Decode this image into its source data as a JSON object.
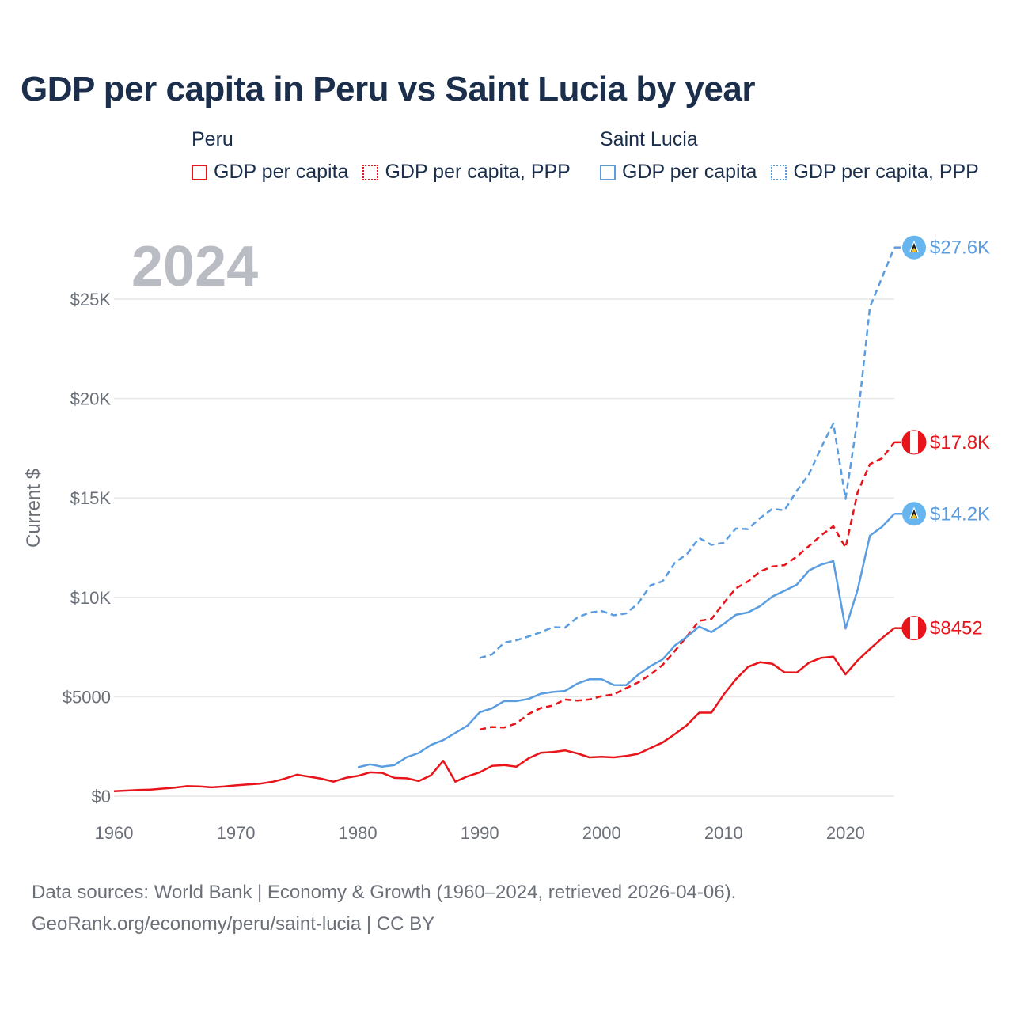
{
  "title": "GDP per capita in Peru vs Saint Lucia by year",
  "legend": {
    "groups": [
      {
        "name": "Peru",
        "items": [
          "GDP per capita",
          "GDP per capita, PPP"
        ]
      },
      {
        "name": "Saint Lucia",
        "items": [
          "GDP per capita",
          "GDP per capita, PPP"
        ]
      }
    ]
  },
  "footer": {
    "line1": "Data sources: World Bank | Economy & Growth (1960–2024, retrieved 2026-04-06).",
    "line2": "GeoRank.org/economy/peru/saint-lucia | CC BY"
  },
  "colors": {
    "peru": "#e8141a",
    "saint_lucia": "#5a9de0",
    "grid": "#e6e6e6"
  },
  "chart_data": {
    "type": "line",
    "title": "GDP per capita in Peru vs Saint Lucia by year",
    "watermark": "2024",
    "xlabel": "",
    "ylabel": "Current $",
    "xlim": [
      1960,
      2024
    ],
    "ylim": [
      0,
      27600
    ],
    "x_ticks": [
      1960,
      1970,
      1980,
      1990,
      2000,
      2010,
      2020
    ],
    "x_tick_labels": [
      "1960",
      "1970",
      "1980",
      "1990",
      "2000",
      "2010",
      "2020"
    ],
    "y_ticks": [
      0,
      5000,
      10000,
      15000,
      20000,
      25000
    ],
    "y_tick_labels": [
      "$0",
      "$5000",
      "$10K",
      "$15K",
      "$20K",
      "$25K"
    ],
    "series": [
      {
        "name": "Peru GDP per capita",
        "country": "Peru",
        "style": "solid",
        "color": "#e8141a",
        "end_label": "$8452",
        "x": [
          1960,
          1961,
          1962,
          1963,
          1964,
          1965,
          1966,
          1967,
          1968,
          1969,
          1970,
          1971,
          1972,
          1973,
          1974,
          1975,
          1976,
          1977,
          1978,
          1979,
          1980,
          1981,
          1982,
          1983,
          1984,
          1985,
          1986,
          1987,
          1988,
          1989,
          1990,
          1991,
          1992,
          1993,
          1994,
          1995,
          1996,
          1997,
          1998,
          1999,
          2000,
          2001,
          2002,
          2003,
          2004,
          2005,
          2006,
          2007,
          2008,
          2009,
          2010,
          2011,
          2012,
          2013,
          2014,
          2015,
          2016,
          2017,
          2018,
          2019,
          2020,
          2021,
          2022,
          2023,
          2024
        ],
        "values": [
          250,
          280,
          310,
          330,
          380,
          430,
          500,
          490,
          440,
          480,
          540,
          590,
          630,
          720,
          880,
          1080,
          980,
          880,
          730,
          920,
          1020,
          1200,
          1170,
          920,
          900,
          760,
          1050,
          1780,
          730,
          1000,
          1200,
          1520,
          1560,
          1480,
          1900,
          2180,
          2220,
          2300,
          2150,
          1950,
          1980,
          1950,
          2020,
          2130,
          2420,
          2700,
          3120,
          3580,
          4200,
          4200,
          5100,
          5870,
          6500,
          6740,
          6660,
          6230,
          6220,
          6710,
          6960,
          7020,
          6130,
          6830,
          7400,
          7950,
          8452
        ]
      },
      {
        "name": "Peru GDP per capita, PPP",
        "country": "Peru",
        "style": "dashed",
        "color": "#e8141a",
        "end_label": "$17.8K",
        "x": [
          1990,
          1991,
          1992,
          1993,
          1994,
          1995,
          1996,
          1997,
          1998,
          1999,
          2000,
          2001,
          2002,
          2003,
          2004,
          2005,
          2006,
          2007,
          2008,
          2009,
          2010,
          2011,
          2012,
          2013,
          2014,
          2015,
          2016,
          2017,
          2018,
          2019,
          2020,
          2021,
          2022,
          2023,
          2024
        ],
        "values": [
          3350,
          3480,
          3450,
          3660,
          4130,
          4430,
          4560,
          4860,
          4810,
          4860,
          5030,
          5120,
          5430,
          5720,
          6120,
          6600,
          7300,
          8040,
          8820,
          8910,
          9700,
          10450,
          10800,
          11300,
          11550,
          11620,
          12050,
          12580,
          13120,
          13580,
          12500,
          15300,
          16700,
          17000,
          17800
        ]
      },
      {
        "name": "Saint Lucia GDP per capita",
        "country": "Saint Lucia",
        "style": "solid",
        "color": "#5a9de0",
        "end_label": "$14.2K",
        "x": [
          1980,
          1981,
          1982,
          1983,
          1984,
          1985,
          1986,
          1987,
          1988,
          1989,
          1990,
          1991,
          1992,
          1993,
          1994,
          1995,
          1996,
          1997,
          1998,
          1999,
          2000,
          2001,
          2002,
          2003,
          2004,
          2005,
          2006,
          2007,
          2008,
          2009,
          2010,
          2011,
          2012,
          2013,
          2014,
          2015,
          2016,
          2017,
          2018,
          2019,
          2020,
          2021,
          2022,
          2023,
          2024
        ],
        "values": [
          1450,
          1600,
          1480,
          1560,
          1960,
          2170,
          2580,
          2820,
          3180,
          3550,
          4220,
          4420,
          4780,
          4780,
          4890,
          5150,
          5240,
          5290,
          5660,
          5880,
          5880,
          5590,
          5580,
          6110,
          6540,
          6880,
          7570,
          8020,
          8530,
          8250,
          8660,
          9120,
          9240,
          9560,
          10040,
          10330,
          10640,
          11350,
          11650,
          11820,
          8430,
          10400,
          13100,
          13550,
          14200
        ]
      },
      {
        "name": "Saint Lucia GDP per capita, PPP",
        "country": "Saint Lucia",
        "style": "dashed",
        "color": "#5a9de0",
        "end_label": "$27.6K",
        "x": [
          1990,
          1991,
          1992,
          1993,
          1994,
          1995,
          1996,
          1997,
          1998,
          1999,
          2000,
          2001,
          2002,
          2003,
          2004,
          2005,
          2006,
          2007,
          2008,
          2009,
          2010,
          2011,
          2012,
          2013,
          2014,
          2015,
          2016,
          2017,
          2018,
          2019,
          2020,
          2021,
          2022,
          2023,
          2024
        ],
        "values": [
          6950,
          7120,
          7720,
          7840,
          8030,
          8240,
          8500,
          8480,
          8980,
          9230,
          9310,
          9100,
          9190,
          9700,
          10600,
          10810,
          11740,
          12180,
          12990,
          12640,
          12740,
          13460,
          13430,
          13990,
          14450,
          14380,
          15360,
          16200,
          17530,
          18750,
          14950,
          19000,
          24600,
          26100,
          27600
        ]
      }
    ]
  }
}
